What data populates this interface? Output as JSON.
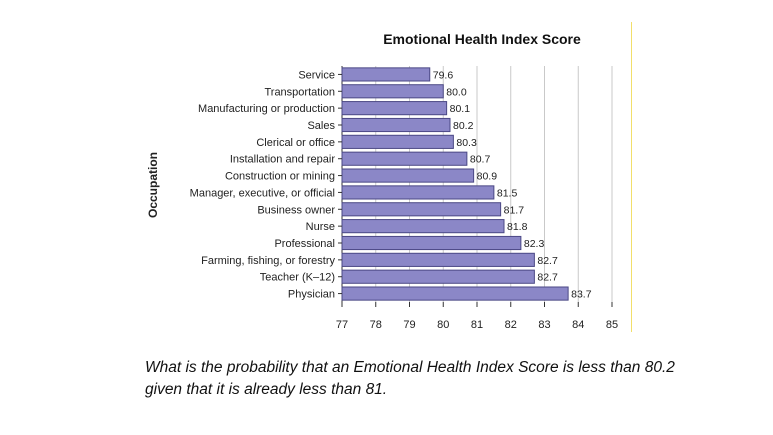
{
  "chart_data": {
    "type": "bar",
    "orientation": "horizontal",
    "title": "Emotional Health Index Score",
    "xlabel": "",
    "ylabel": "Occupation",
    "xlim": [
      77,
      85
    ],
    "xticks": [
      77,
      78,
      79,
      80,
      81,
      82,
      83,
      84,
      85
    ],
    "grid": true,
    "categories": [
      "Service",
      "Transportation",
      "Manufacturing or production",
      "Sales",
      "Clerical or office",
      "Installation and repair",
      "Construction or mining",
      "Manager, executive, or official",
      "Business owner",
      "Nurse",
      "Professional",
      "Farming, fishing, or forestry",
      "Teacher (K–12)",
      "Physician"
    ],
    "values": [
      79.6,
      80.0,
      80.1,
      80.2,
      80.3,
      80.7,
      80.9,
      81.5,
      81.7,
      81.8,
      82.3,
      82.7,
      82.7,
      83.7
    ],
    "value_labels": [
      "79.6",
      "80.0",
      "80.1",
      "80.2",
      "80.3",
      "80.7",
      "80.9",
      "81.5",
      "81.7",
      "81.8",
      "82.3",
      "82.7",
      "82.7",
      "83.7"
    ],
    "bar_color": "#8b87c7",
    "bar_edge_color": "#4b4885"
  },
  "question": {
    "line1": "What is the probability that an Emotional Health Index Score is less than 80.2",
    "line2": "given that it is already less than 81."
  },
  "colors": {
    "grid": "#c9c9c9",
    "axis": "#333333",
    "text": "#222222",
    "divider": "#f2df6a"
  }
}
